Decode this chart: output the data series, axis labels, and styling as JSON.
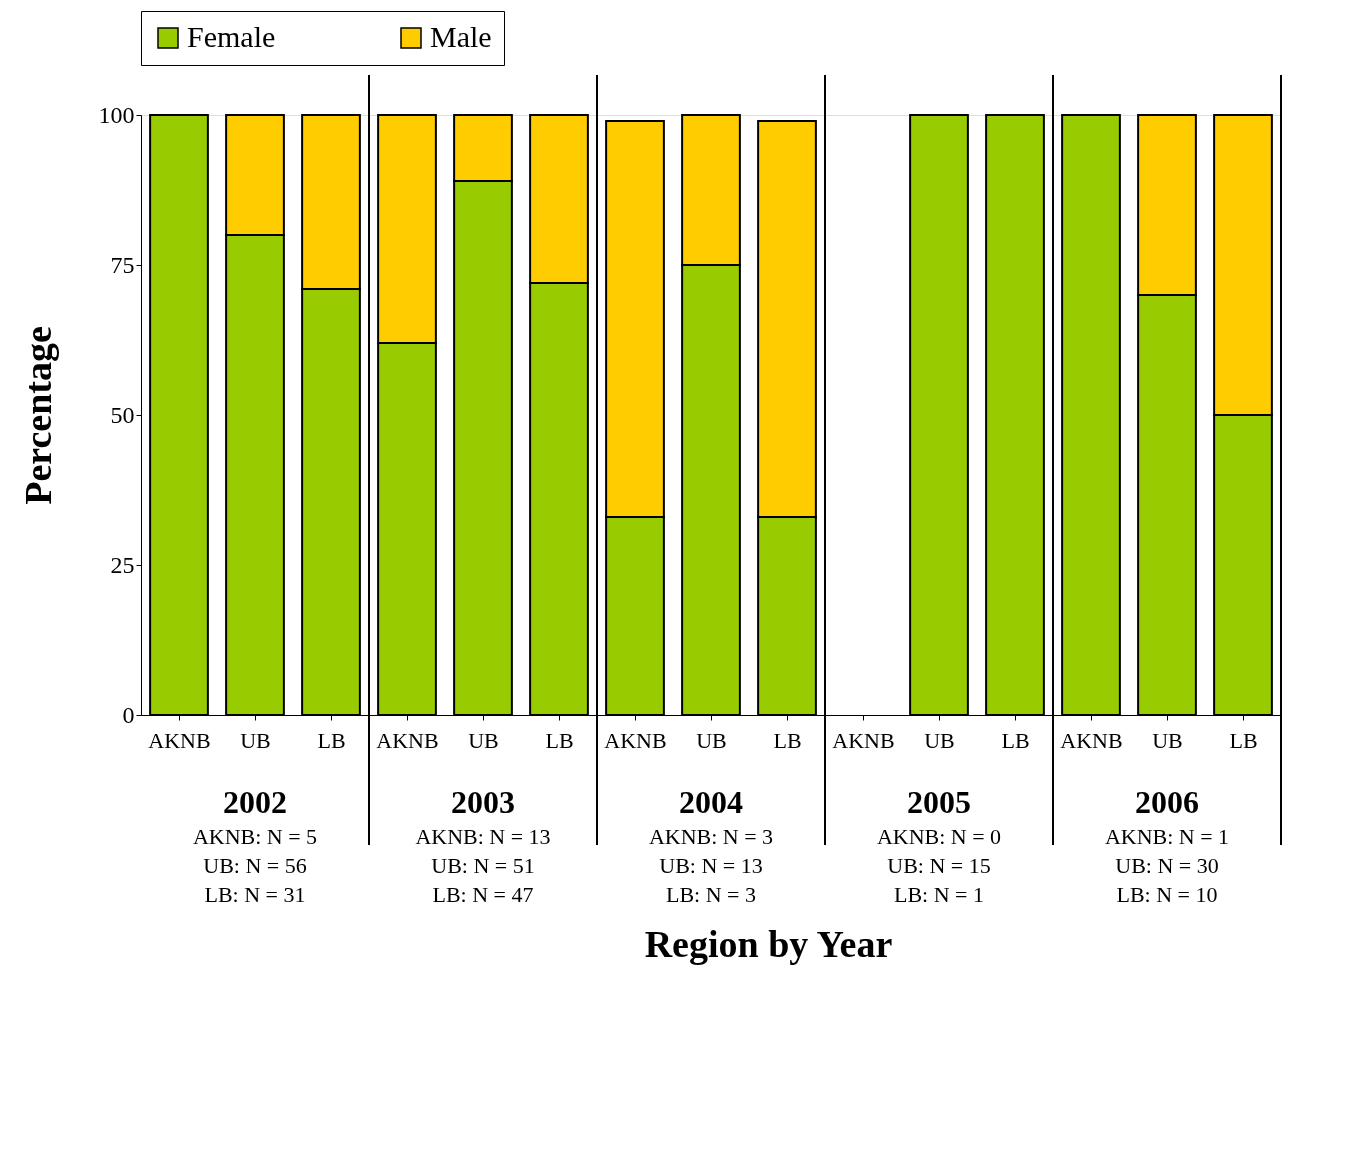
{
  "chart_data": {
    "type": "bar",
    "stacked": true,
    "xlabel": "Region by Year",
    "ylabel": "Percentage",
    "categories": [
      "AKNB",
      "UB",
      "LB",
      "AKNB",
      "UB",
      "LB",
      "AKNB",
      "UB",
      "LB",
      "AKNB",
      "UB",
      "LB",
      "AKNB",
      "UB",
      "LB"
    ],
    "series": [
      {
        "name": "Female",
        "color": "#99cc00",
        "values": [
          100,
          80,
          71,
          62,
          89,
          72,
          33,
          75,
          33,
          null,
          100,
          100,
          100,
          70,
          50
        ]
      },
      {
        "name": "Male",
        "color": "#ffcc00",
        "values": [
          0,
          20,
          29,
          38,
          11,
          28,
          66,
          25,
          66,
          null,
          0,
          0,
          0,
          30,
          50
        ]
      }
    ],
    "ylim": [
      0,
      100
    ],
    "yticks": [
      0,
      25,
      50,
      75,
      100
    ],
    "grid": false,
    "legend": "top",
    "annotations": [
      "2002",
      "AKNB: N = 5",
      "UB: N = 56",
      "LB: N = 31",
      "2003",
      "AKNB: N = 13",
      "UB: N = 51",
      "LB: N = 47",
      "2004",
      "AKNB: N = 3",
      "UB: N = 13",
      "LB: N = 3",
      "2005",
      "AKNB: N = 0",
      "UB: N = 15",
      "LB: N = 1",
      "2006",
      "AKNB: N = 1",
      "UB: N = 30",
      "LB: N = 10"
    ]
  }
}
